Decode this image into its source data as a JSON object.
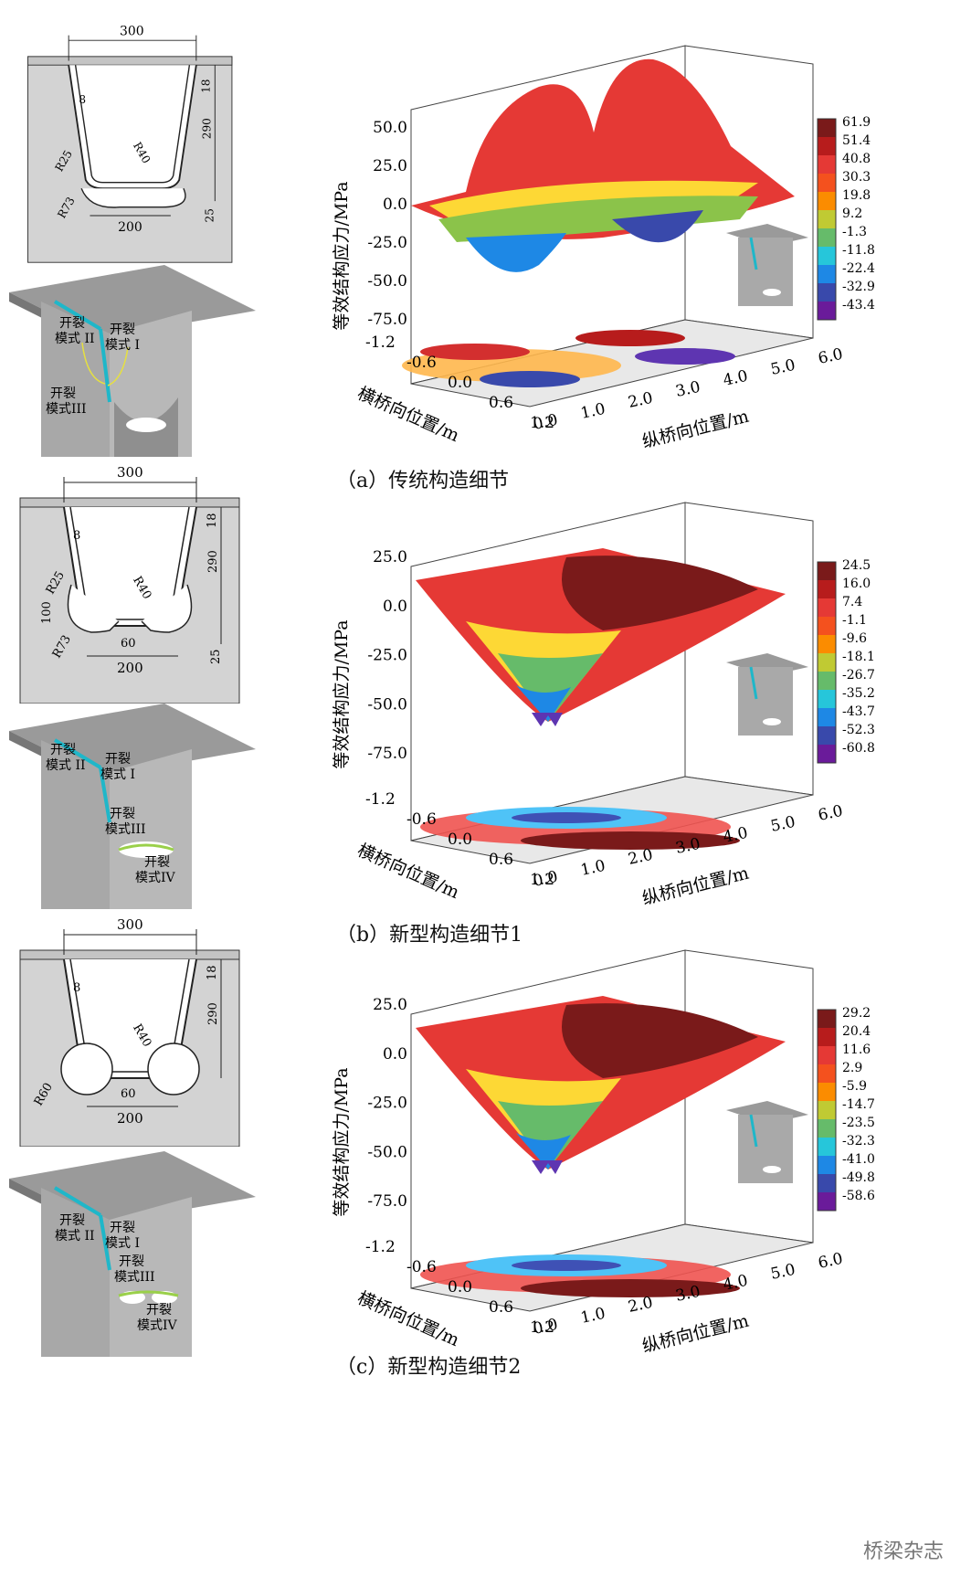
{
  "panels": [
    {
      "caption": "（a）传统构造细节",
      "section": {
        "top_width": "300",
        "thickness": "8",
        "deck": "18",
        "depth": "290",
        "bottom_gap": "25",
        "r_inner": "R40",
        "r_weld": "R25",
        "r_cut": "R73",
        "bottom_width": "200",
        "side": "",
        "center": ""
      },
      "crack_labels": [
        [
          "开裂",
          "模式 II"
        ],
        [
          "开裂",
          "模式 I"
        ],
        [
          "开裂",
          "模式III"
        ]
      ],
      "chart_data": {
        "type": "surface",
        "zlabel": "等效结构应力/MPa",
        "xlabel": "纵桥向位置/m",
        "ylabel": "横桥向位置/m",
        "z_ticks": [
          "50.0",
          "25.0",
          "0.0",
          "-25.0",
          "-50.0",
          "-75.0"
        ],
        "x_ticks": [
          "0.0",
          "1.0",
          "2.0",
          "3.0",
          "4.0",
          "5.0",
          "6.0"
        ],
        "y_ticks": [
          "-1.2",
          "-0.6",
          "0.0",
          "0.6",
          "1.2"
        ],
        "colorbar": [
          "61.9",
          "51.4",
          "40.8",
          "30.3",
          "19.8",
          "9.2",
          "-1.3",
          "-11.8",
          "-22.4",
          "-32.9",
          "-43.4"
        ],
        "zrange": [
          -43.4,
          61.9
        ]
      }
    },
    {
      "caption": "（b）新型构造细节1",
      "section": {
        "top_width": "300",
        "thickness": "8",
        "deck": "18",
        "depth": "290",
        "bottom_gap": "25",
        "r_inner": "R40",
        "r_weld": "R25",
        "r_cut": "R73",
        "bottom_width": "200",
        "side": "100",
        "center": "60"
      },
      "crack_labels": [
        [
          "开裂",
          "模式 II"
        ],
        [
          "开裂",
          "模式 I"
        ],
        [
          "开裂",
          "模式III"
        ],
        [
          "开裂",
          "模式IV"
        ]
      ],
      "chart_data": {
        "type": "surface",
        "zlabel": "等效结构应力/MPa",
        "xlabel": "纵桥向位置/m",
        "ylabel": "横桥向位置/m",
        "z_ticks": [
          "25.0",
          "0.0",
          "-25.0",
          "-50.0",
          "-75.0"
        ],
        "x_ticks": [
          "0.0",
          "1.0",
          "2.0",
          "3.0",
          "4.0",
          "5.0",
          "6.0"
        ],
        "y_ticks": [
          "-1.2",
          "-0.6",
          "0.0",
          "0.6",
          "1.2"
        ],
        "colorbar": [
          "24.5",
          "16.0",
          "7.4",
          "-1.1",
          "-9.6",
          "-18.1",
          "-26.7",
          "-35.2",
          "-43.7",
          "-52.3",
          "-60.8"
        ],
        "zrange": [
          -60.8,
          24.5
        ]
      }
    },
    {
      "caption": "（c）新型构造细节2",
      "section": {
        "top_width": "300",
        "thickness": "8",
        "deck": "18",
        "depth": "290",
        "bottom_gap": "",
        "r_inner": "R40",
        "r_weld": "",
        "r_cut": "R60",
        "bottom_width": "200",
        "side": "",
        "center": "60"
      },
      "crack_labels": [
        [
          "开裂",
          "模式 II"
        ],
        [
          "开裂",
          "模式 I"
        ],
        [
          "开裂",
          "模式III"
        ],
        [
          "开裂",
          "模式IV"
        ]
      ],
      "chart_data": {
        "type": "surface",
        "zlabel": "等效结构应力/MPa",
        "xlabel": "纵桥向位置/m",
        "ylabel": "横桥向位置/m",
        "z_ticks": [
          "25.0",
          "0.0",
          "-25.0",
          "-50.0",
          "-75.0"
        ],
        "x_ticks": [
          "0.0",
          "1.0",
          "2.0",
          "3.0",
          "4.0",
          "5.0",
          "6.0"
        ],
        "y_ticks": [
          "-1.2",
          "-0.6",
          "0.0",
          "0.6",
          "1.2"
        ],
        "colorbar": [
          "29.2",
          "20.4",
          "11.6",
          "2.9",
          "-5.9",
          "-14.7",
          "-23.5",
          "-32.3",
          "-41.0",
          "-49.8",
          "-58.6"
        ],
        "zrange": [
          -58.6,
          29.2
        ]
      }
    }
  ],
  "watermark": "桥梁杂志"
}
